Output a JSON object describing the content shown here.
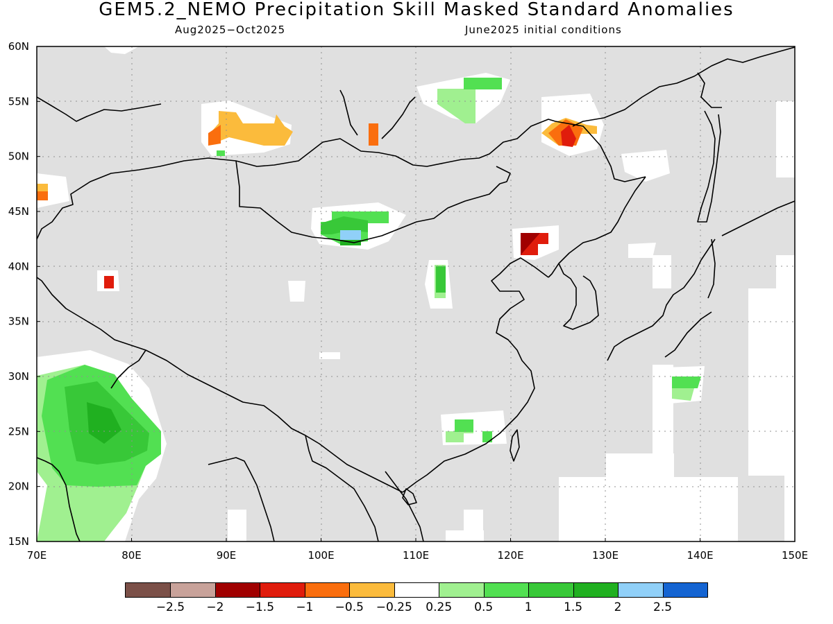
{
  "header": {
    "title": "GEM5.2_NEMO Precipitation Skill Masked Standard Anomalies",
    "period": "Aug2025−Oct2025",
    "init": "June2025 initial conditions"
  },
  "map": {
    "lon_range": [
      70,
      150
    ],
    "lat_range": [
      15,
      60
    ],
    "lon_ticks": [
      "70E",
      "80E",
      "90E",
      "100E",
      "110E",
      "120E",
      "130E",
      "140E",
      "150E"
    ],
    "lat_ticks": [
      "15N",
      "20N",
      "25N",
      "30N",
      "35N",
      "40N",
      "45N",
      "50N",
      "55N",
      "60N"
    ],
    "colors": {
      "masked": "#e0e0e0",
      "neutral": "#ffffff",
      "coast": "#000000"
    }
  },
  "colorbar": {
    "colors": [
      "#7b5048",
      "#c8a29a",
      "#a00000",
      "#e01c0c",
      "#fa6e0e",
      "#fbbb3c",
      "#ffffff",
      "#a0f090",
      "#52e052",
      "#38c838",
      "#20b020",
      "#90d0f8",
      "#1464d2"
    ],
    "labels": [
      "−2.5",
      "−2",
      "−1.5",
      "−1",
      "−0.5",
      "−0.25",
      "0.25",
      "0.5",
      "1",
      "1.5",
      "2",
      "2.5"
    ]
  }
}
